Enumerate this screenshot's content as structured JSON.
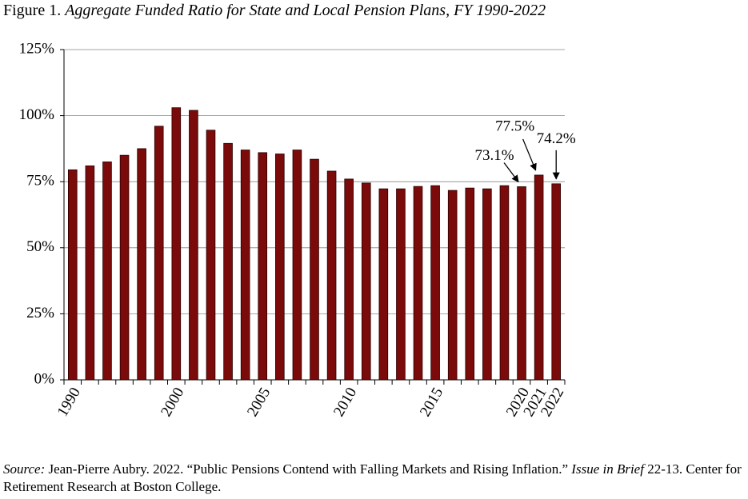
{
  "chart_data": {
    "type": "bar",
    "title_prefix": "Figure 1.",
    "title": "Aggregate Funded Ratio for State and Local Pension Plans, FY 1990-2022",
    "categories": [
      "1990",
      null,
      null,
      null,
      null,
      null,
      "2000",
      null,
      null,
      null,
      null,
      "2005",
      null,
      null,
      null,
      null,
      "2010",
      null,
      null,
      null,
      null,
      "2015",
      null,
      null,
      null,
      null,
      "2020",
      "2021",
      "2022"
    ],
    "values": [
      79.5,
      81,
      82.5,
      85,
      87.5,
      96,
      103,
      102,
      94.5,
      89.5,
      87,
      86,
      85.5,
      87,
      83.5,
      79,
      76,
      74.5,
      72.3,
      72.3,
      73.2,
      73.5,
      71.7,
      72.6,
      72.3,
      73.5,
      73.1,
      77.5,
      74.2
    ],
    "value_labels": [
      null,
      null,
      null,
      null,
      null,
      null,
      null,
      null,
      null,
      null,
      null,
      null,
      null,
      null,
      null,
      null,
      null,
      null,
      null,
      null,
      null,
      null,
      null,
      null,
      null,
      null,
      "73.1%",
      "77.5%",
      "74.2%"
    ],
    "color": "#7b0a0a",
    "ylim": [
      0,
      125
    ],
    "yticks": [
      {
        "value": 0,
        "label": "0%"
      },
      {
        "value": 25,
        "label": "25%"
      },
      {
        "value": 50,
        "label": "50%"
      },
      {
        "value": 75,
        "label": "75%"
      },
      {
        "value": 100,
        "label": "100%"
      },
      {
        "value": 125,
        "label": "125%"
      }
    ],
    "grid": true,
    "source": [
      "Source:",
      "Jean-Pierre Aubry. 2022. “Public Pensions Contend with Falling Markets and Rising Inflation.”",
      "Issue in Brief",
      "22-13. Center for Retirement Research at Boston College."
    ]
  }
}
